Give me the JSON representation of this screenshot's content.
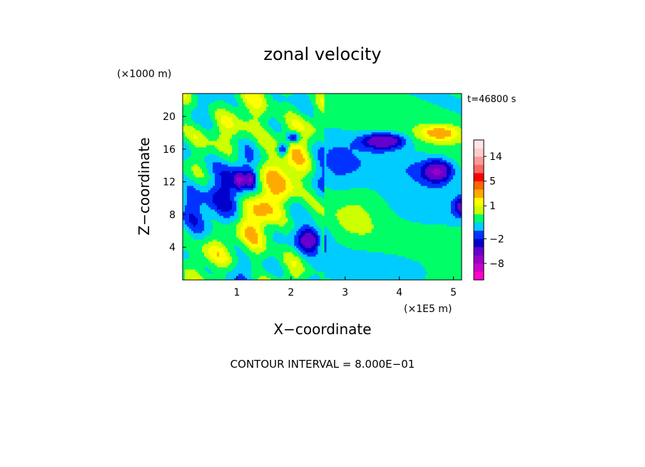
{
  "chart_data": {
    "type": "heatmap",
    "title": "zonal velocity",
    "xlabel": "X−coordinate",
    "ylabel": "Z−coordinate",
    "x_unit": "(×1E5 m)",
    "y_unit": "(×1000 m)",
    "time_label": "t=46800 s",
    "footnote": "CONTOUR INTERVAL = 8.000E−01",
    "xlim": [
      0,
      5.15
    ],
    "ylim": [
      0,
      22.8
    ],
    "x_ticks": [
      1,
      2,
      3,
      4,
      5
    ],
    "y_ticks": [
      4,
      8,
      12,
      16,
      20
    ],
    "colorbar": {
      "levels": [
        -14,
        -11,
        -8,
        -5,
        -3,
        -2,
        -1.2,
        -0.4,
        0.4,
        1,
        1.6,
        3,
        5,
        8,
        11,
        14,
        17
      ],
      "colors": [
        "#ff00cc",
        "#cc00cc",
        "#9900cc",
        "#6600cc",
        "#0000cc",
        "#0033ff",
        "#00ccff",
        "#00ff66",
        "#ccff00",
        "#ffff00",
        "#ffaa00",
        "#ff6600",
        "#ff0000",
        "#ff6666",
        "#ff9999",
        "#ffcccc",
        "#ffe6e6"
      ],
      "tick_labels": [
        {
          "label": "14",
          "value": 14
        },
        {
          "label": "5",
          "value": 5
        },
        {
          "label": "1",
          "value": 1
        },
        {
          "label": "−2",
          "value": -2
        },
        {
          "label": "−8",
          "value": -8
        }
      ]
    },
    "background_value": 0,
    "features": [
      {
        "x": 0.4,
        "z": 12,
        "rx": 0.35,
        "rz": 6,
        "v": -0.8
      },
      {
        "x": 0.1,
        "z": 9,
        "rx": 0.25,
        "rz": 2.5,
        "v": -1.5
      },
      {
        "x": 0.45,
        "z": 4,
        "rx": 0.3,
        "rz": 3,
        "v": 0.8
      },
      {
        "x": 0.75,
        "z": 10,
        "rx": 0.3,
        "rz": 5,
        "v": -1
      },
      {
        "x": 1.1,
        "z": 12,
        "rx": 0.3,
        "rz": 3,
        "v": -1.5
      },
      {
        "x": 1.05,
        "z": 12.2,
        "rx": 0.08,
        "rz": 0.8,
        "v": -4
      },
      {
        "x": 1.25,
        "z": 12.3,
        "rx": 0.08,
        "rz": 0.8,
        "v": -4
      },
      {
        "x": 1.45,
        "z": 7,
        "rx": 0.3,
        "rz": 5,
        "v": 1.5
      },
      {
        "x": 1.75,
        "z": 18,
        "rx": 0.5,
        "rz": 3,
        "v": 0.8
      },
      {
        "x": 1.85,
        "z": 16,
        "rx": 0.1,
        "rz": 0.8,
        "v": -3
      },
      {
        "x": 2.05,
        "z": 17.5,
        "rx": 0.12,
        "rz": 0.7,
        "v": -3
      },
      {
        "x": 2.0,
        "z": 12,
        "rx": 0.4,
        "rz": 4,
        "v": 1.2
      },
      {
        "x": 2.35,
        "z": 5,
        "rx": 0.2,
        "rz": 1.3,
        "v": -4
      },
      {
        "x": 2.35,
        "z": 5,
        "rx": 0.4,
        "rz": 2.5,
        "v": -1
      },
      {
        "x": 2.8,
        "z": 14,
        "rx": 0.45,
        "rz": 7,
        "v": -0.8
      },
      {
        "x": 3.1,
        "z": 8,
        "rx": 0.5,
        "rz": 3,
        "v": 0.6
      },
      {
        "x": 3.7,
        "z": 17,
        "rx": 0.35,
        "rz": 0.8,
        "v": -4
      },
      {
        "x": 3.7,
        "z": 17,
        "rx": 0.6,
        "rz": 1.8,
        "v": -1.2
      },
      {
        "x": 4.0,
        "z": 14,
        "rx": 1.0,
        "rz": 2,
        "v": -0.8
      },
      {
        "x": 4.7,
        "z": 13.3,
        "rx": 0.22,
        "rz": 1.1,
        "v": -4
      },
      {
        "x": 4.7,
        "z": 13.3,
        "rx": 0.45,
        "rz": 2.2,
        "v": -1.2
      },
      {
        "x": 4.75,
        "z": 18,
        "rx": 0.4,
        "rz": 1,
        "v": 2
      },
      {
        "x": 5.15,
        "z": 9,
        "rx": 0.15,
        "rz": 1.2,
        "v": -3
      },
      {
        "x": 4.2,
        "z": 8,
        "rx": 0.9,
        "rz": 3,
        "v": -0.6
      },
      {
        "x": 3.8,
        "z": 2,
        "rx": 1.4,
        "rz": 2,
        "v": -0.7
      },
      {
        "x": 0.9,
        "z": 1,
        "rx": 0.9,
        "rz": 1.5,
        "v": -0.6
      },
      {
        "x": 0.3,
        "z": 18,
        "rx": 0.4,
        "rz": 2,
        "v": 0.9
      }
    ]
  }
}
